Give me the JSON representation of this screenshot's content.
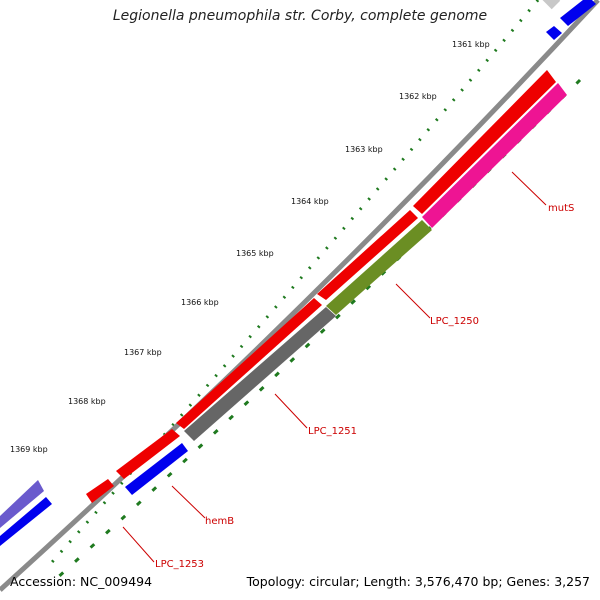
{
  "title": "Legionella pneumophila str. Corby, complete genome",
  "accession_text": "Accession: NC_009494",
  "summary_text": "Topology: circular; Length: 3,576,470 bp; Genes: 3,257",
  "colors": {
    "backbone": "#8a8a8a",
    "tick": "#1f7a1f",
    "red_cds": "#ee0000",
    "blue_cds": "#0000ee",
    "gray_cds": "#666666",
    "olive_cds": "#6b8e23",
    "pink_cds": "#ee1493",
    "purple_cds": "#6a5acd",
    "label": "#cc0000"
  },
  "tick_labels": [
    "1361 kbp",
    "1362 kbp",
    "1363 kbp",
    "1364 kbp",
    "1365 kbp",
    "1366 kbp",
    "1367 kbp",
    "1368 kbp",
    "1369 kbp"
  ],
  "gene_labels": [
    "mutS",
    "LPC_1250",
    "LPC_1251",
    "hemB",
    "LPC_1253"
  ]
}
